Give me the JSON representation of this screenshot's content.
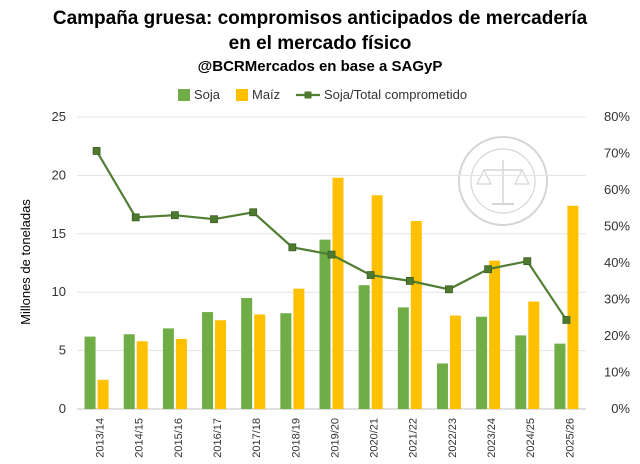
{
  "chart_data": {
    "type": "bar+line",
    "title": "Campaña gruesa: compromisos anticipados de mercadería",
    "title_line2": "en el mercado físico",
    "subtitle": "@BCRMercados en base a SAGyP",
    "ylabel": "Millones de toneladas",
    "ylim": [
      0,
      25
    ],
    "y2lim": [
      0,
      80
    ],
    "y_ticks": [
      "0",
      "5",
      "10",
      "15",
      "20",
      "25"
    ],
    "y2_ticks": [
      "0%",
      "10%",
      "20%",
      "30%",
      "40%",
      "50%",
      "60%",
      "70%",
      "80%"
    ],
    "legend_position": "top",
    "grid": true,
    "categories": [
      "2013/14",
      "2014/15",
      "2015/16",
      "2016/17",
      "2017/18",
      "2018/19",
      "2019/20",
      "2020/21",
      "2021/22",
      "2022/23",
      "2023/24",
      "2024/25",
      "2025/26"
    ],
    "series": [
      {
        "name": "Soja",
        "type": "bar",
        "axis": "left",
        "color": "#70ad47",
        "values": [
          6.2,
          6.4,
          6.9,
          8.3,
          9.5,
          8.2,
          14.5,
          10.6,
          8.7,
          3.9,
          7.9,
          6.3,
          5.6
        ]
      },
      {
        "name": "Maíz",
        "type": "bar",
        "axis": "left",
        "color": "#ffc000",
        "values": [
          2.5,
          5.8,
          6.0,
          7.6,
          8.1,
          10.3,
          19.8,
          18.3,
          16.1,
          8.0,
          12.7,
          9.2,
          17.4
        ]
      },
      {
        "name": "Soja/Total comprometido",
        "type": "line",
        "axis": "right",
        "color": "#507e32",
        "values": [
          70.7,
          52.5,
          53.1,
          52.0,
          53.9,
          44.3,
          42.3,
          36.7,
          35.1,
          32.8,
          38.3,
          40.5,
          24.4
        ]
      }
    ]
  }
}
